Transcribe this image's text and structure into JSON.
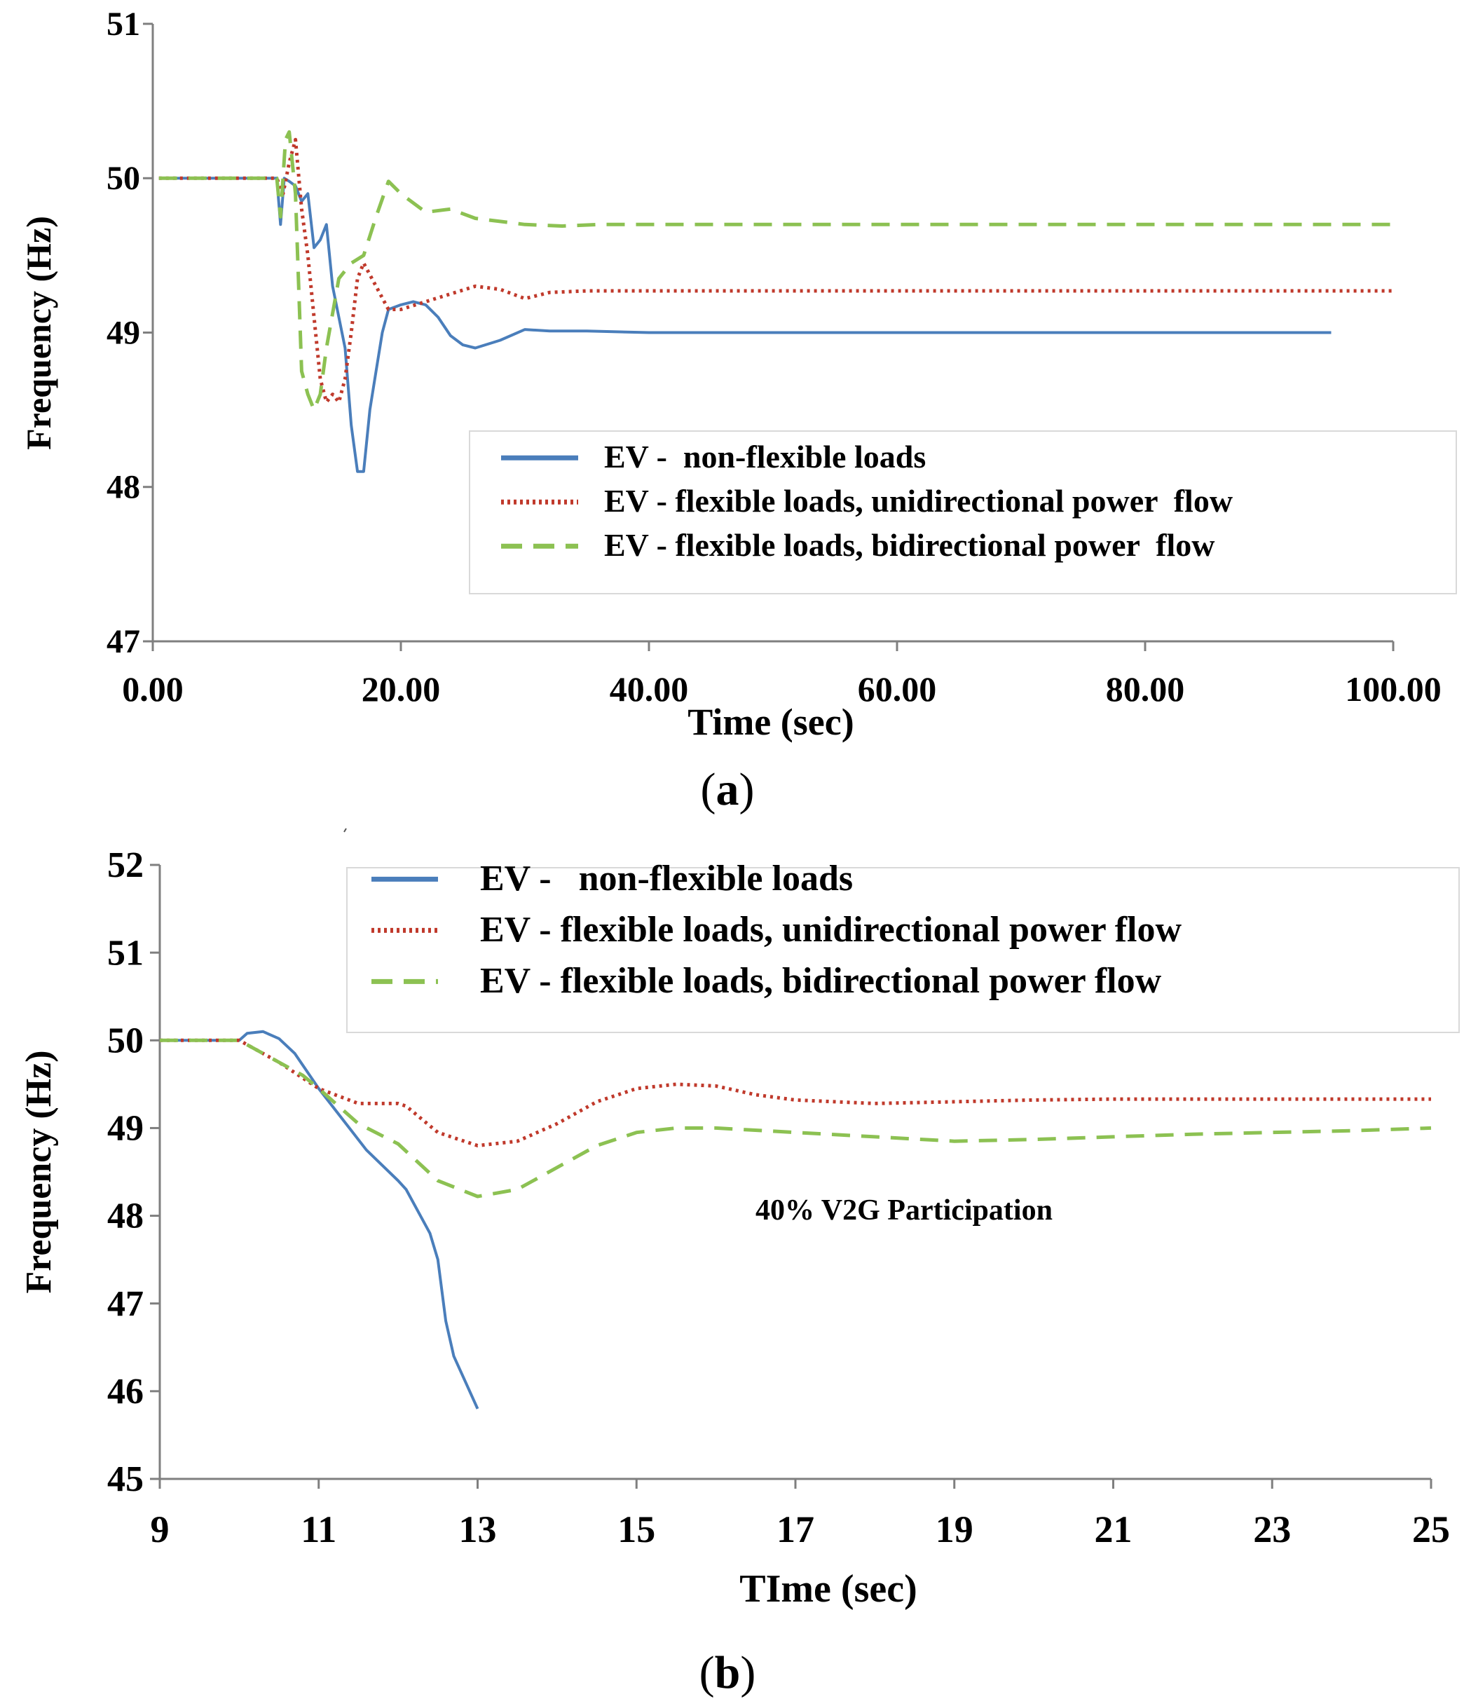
{
  "colors": {
    "blue": "#4a7ebb",
    "red": "#c0392b",
    "green": "#8cc152",
    "axis": "#7f7f7f"
  },
  "chart_data": [
    {
      "type": "line",
      "panel_label_open": "(",
      "panel_label_letter": "a",
      "panel_label_close": ")",
      "title": "",
      "xlabel": "Time (sec)",
      "ylabel": "Frequency (Hz)",
      "xlim": [
        0,
        100
      ],
      "ylim": [
        47,
        51
      ],
      "xticks": [
        0,
        20,
        40,
        60,
        80,
        100
      ],
      "xtick_labels": [
        "0.00",
        "20.00",
        "40.00",
        "60.00",
        "80.00",
        "100.00"
      ],
      "yticks": [
        47,
        48,
        49,
        50,
        51
      ],
      "ytick_labels": [
        "47",
        "48",
        "49",
        "50",
        "51"
      ],
      "legend_position": "center-right",
      "series": [
        {
          "name": "EV -  non-flexible loads",
          "style": "solid",
          "color": "#4a7ebb",
          "points": [
            [
              0.5,
              50
            ],
            [
              10,
              50
            ],
            [
              10.3,
              49.7
            ],
            [
              10.6,
              50
            ],
            [
              11,
              49.98
            ],
            [
              11.5,
              49.95
            ],
            [
              12,
              49.85
            ],
            [
              12.5,
              49.9
            ],
            [
              13,
              49.55
            ],
            [
              13.5,
              49.6
            ],
            [
              14,
              49.7
            ],
            [
              14.5,
              49.3
            ],
            [
              15,
              49.1
            ],
            [
              15.5,
              48.9
            ],
            [
              16,
              48.4
            ],
            [
              16.5,
              48.1
            ],
            [
              17,
              48.1
            ],
            [
              17.5,
              48.5
            ],
            [
              18,
              48.75
            ],
            [
              18.5,
              49.0
            ],
            [
              19,
              49.15
            ],
            [
              20,
              49.18
            ],
            [
              21,
              49.2
            ],
            [
              22,
              49.18
            ],
            [
              23,
              49.1
            ],
            [
              24,
              48.98
            ],
            [
              25,
              48.92
            ],
            [
              26,
              48.9
            ],
            [
              28,
              48.95
            ],
            [
              30,
              49.02
            ],
            [
              32,
              49.01
            ],
            [
              35,
              49.01
            ],
            [
              40,
              49
            ],
            [
              60,
              49
            ],
            [
              80,
              49
            ],
            [
              95,
              49
            ]
          ]
        },
        {
          "name": "EV - flexible loads, unidirectional power  flow",
          "style": "dotted",
          "color": "#c0392b",
          "points": [
            [
              0.5,
              50
            ],
            [
              10,
              50
            ],
            [
              10.5,
              49.9
            ],
            [
              11,
              50.1
            ],
            [
              11.5,
              50.25
            ],
            [
              12,
              49.8
            ],
            [
              12.5,
              49.5
            ],
            [
              13,
              49.1
            ],
            [
              13.5,
              48.7
            ],
            [
              14,
              48.55
            ],
            [
              14.5,
              48.6
            ],
            [
              15,
              48.55
            ],
            [
              15.5,
              48.7
            ],
            [
              16,
              49.0
            ],
            [
              16.5,
              49.35
            ],
            [
              17,
              49.45
            ],
            [
              18,
              49.3
            ],
            [
              19,
              49.15
            ],
            [
              20,
              49.15
            ],
            [
              22,
              49.2
            ],
            [
              24,
              49.25
            ],
            [
              26,
              49.3
            ],
            [
              28,
              49.28
            ],
            [
              30,
              49.22
            ],
            [
              32,
              49.26
            ],
            [
              35,
              49.27
            ],
            [
              40,
              49.27
            ],
            [
              60,
              49.27
            ],
            [
              80,
              49.27
            ],
            [
              100,
              49.27
            ]
          ]
        },
        {
          "name": "EV - flexible loads, bidirectional power  flow",
          "style": "dashed",
          "color": "#8cc152",
          "points": [
            [
              0.5,
              50
            ],
            [
              10,
              50
            ],
            [
              10.3,
              49.75
            ],
            [
              10.7,
              50.25
            ],
            [
              11,
              50.3
            ],
            [
              11.5,
              49.9
            ],
            [
              12,
              48.75
            ],
            [
              12.5,
              48.6
            ],
            [
              13,
              48.5
            ],
            [
              13.5,
              48.6
            ],
            [
              14,
              48.9
            ],
            [
              15,
              49.35
            ],
            [
              16,
              49.45
            ],
            [
              17,
              49.5
            ],
            [
              18,
              49.75
            ],
            [
              19,
              49.98
            ],
            [
              20,
              49.9
            ],
            [
              22,
              49.78
            ],
            [
              24,
              49.8
            ],
            [
              26,
              49.74
            ],
            [
              28,
              49.72
            ],
            [
              30,
              49.7
            ],
            [
              33,
              49.69
            ],
            [
              36,
              49.7
            ],
            [
              40,
              49.7
            ],
            [
              60,
              49.7
            ],
            [
              80,
              49.7
            ],
            [
              100,
              49.7
            ]
          ]
        }
      ]
    },
    {
      "type": "line",
      "panel_label_open": "(",
      "panel_label_letter": "b",
      "panel_label_close": ")",
      "title": "",
      "xlabel": "TIme (sec)",
      "ylabel": "Frequency (Hz)",
      "annotation": "40% V2G Participation",
      "xlim": [
        9,
        25
      ],
      "ylim": [
        45,
        52
      ],
      "xticks": [
        9,
        11,
        13,
        15,
        17,
        19,
        21,
        23,
        25
      ],
      "xtick_labels": [
        "9",
        "11",
        "13",
        "15",
        "17",
        "19",
        "21",
        "23",
        "25"
      ],
      "yticks": [
        45,
        46,
        47,
        48,
        49,
        50,
        51,
        52
      ],
      "ytick_labels": [
        "45",
        "46",
        "47",
        "48",
        "49",
        "50",
        "51",
        "52"
      ],
      "legend_position": "top-right",
      "series": [
        {
          "name": "EV -   non-flexible loads",
          "style": "solid",
          "color": "#4a7ebb",
          "points": [
            [
              9,
              50
            ],
            [
              10,
              50
            ],
            [
              10.1,
              50.08
            ],
            [
              10.3,
              50.1
            ],
            [
              10.5,
              50.02
            ],
            [
              10.7,
              49.85
            ],
            [
              11,
              49.45
            ],
            [
              11.3,
              49.1
            ],
            [
              11.6,
              48.75
            ],
            [
              12,
              48.4
            ],
            [
              12.1,
              48.3
            ],
            [
              12.4,
              47.8
            ],
            [
              12.5,
              47.5
            ],
            [
              12.6,
              46.8
            ],
            [
              12.7,
              46.4
            ],
            [
              12.85,
              46.1
            ],
            [
              13,
              45.8
            ]
          ]
        },
        {
          "name": "EV - flexible loads, unidirectional power flow",
          "style": "dotted",
          "color": "#c0392b",
          "points": [
            [
              9,
              50
            ],
            [
              10,
              50
            ],
            [
              10.5,
              49.75
            ],
            [
              11,
              49.45
            ],
            [
              11.5,
              49.28
            ],
            [
              12,
              49.28
            ],
            [
              12.1,
              49.25
            ],
            [
              12.5,
              48.95
            ],
            [
              13,
              48.8
            ],
            [
              13.5,
              48.85
            ],
            [
              14,
              49.05
            ],
            [
              14.5,
              49.3
            ],
            [
              15,
              49.45
            ],
            [
              15.5,
              49.5
            ],
            [
              16,
              49.48
            ],
            [
              16.5,
              49.38
            ],
            [
              17,
              49.32
            ],
            [
              18,
              49.28
            ],
            [
              19,
              49.3
            ],
            [
              20,
              49.32
            ],
            [
              21,
              49.33
            ],
            [
              22,
              49.33
            ],
            [
              23,
              49.33
            ],
            [
              25,
              49.33
            ]
          ]
        },
        {
          "name": "EV - flexible loads, bidirectional power flow",
          "style": "dashed",
          "color": "#8cc152",
          "points": [
            [
              9,
              50
            ],
            [
              10,
              50
            ],
            [
              10.3,
              49.85
            ],
            [
              10.8,
              49.6
            ],
            [
              11,
              49.45
            ],
            [
              11.5,
              49.05
            ],
            [
              12,
              48.82
            ],
            [
              12.5,
              48.4
            ],
            [
              13,
              48.22
            ],
            [
              13.5,
              48.3
            ],
            [
              14,
              48.55
            ],
            [
              14.5,
              48.8
            ],
            [
              15,
              48.95
            ],
            [
              15.5,
              49.0
            ],
            [
              16,
              49.0
            ],
            [
              17,
              48.95
            ],
            [
              18,
              48.9
            ],
            [
              19,
              48.85
            ],
            [
              20,
              48.87
            ],
            [
              21,
              48.9
            ],
            [
              22,
              48.93
            ],
            [
              23,
              48.95
            ],
            [
              24,
              48.97
            ],
            [
              25,
              49.0
            ]
          ]
        }
      ]
    }
  ]
}
